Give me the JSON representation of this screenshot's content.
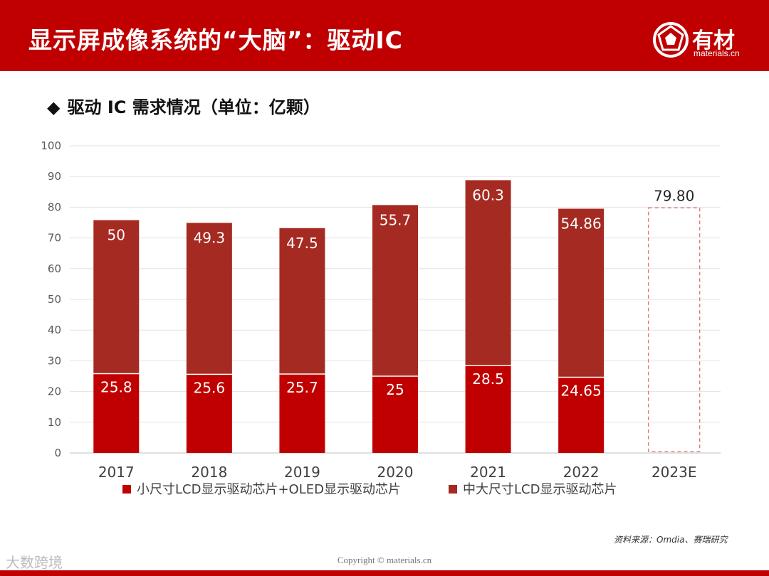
{
  "header": {
    "title": "显示屏成像系统的“大脑”：驱动IC",
    "logo_text": "有材",
    "logo_domain": "materials.cn"
  },
  "subtitle": {
    "marker": "◆",
    "text": "驱动 IC 需求情况（单位：亿颗）"
  },
  "chart_data": {
    "type": "bar",
    "stacked": true,
    "title": "驱动 IC 需求情况（单位：亿颗）",
    "categories": [
      "2017",
      "2018",
      "2019",
      "2020",
      "2021",
      "2022",
      "2023E"
    ],
    "series": [
      {
        "name": "小尺寸LCD显示驱动芯片+OLED显示驱动芯片",
        "color": "#c00000",
        "values": [
          25.8,
          25.6,
          25.7,
          25,
          28.5,
          24.65,
          null
        ],
        "labels": [
          "25.8",
          "25.6",
          "25.7",
          "25",
          "28.5",
          "24.65",
          ""
        ]
      },
      {
        "name": "中大尺寸LCD显示驱动芯片",
        "color": "#a52a22",
        "values": [
          50,
          49.3,
          47.5,
          55.7,
          60.3,
          54.86,
          null
        ],
        "labels": [
          "50",
          "49.3",
          "47.5",
          "55.7",
          "60.3",
          "54.86",
          ""
        ]
      }
    ],
    "forecast": {
      "category": "2023E",
      "total": 79.8,
      "label": "79.80",
      "style": "dashed-outline"
    },
    "yticks": [
      "0",
      "10",
      "20",
      "30",
      "40",
      "50",
      "60",
      "70",
      "80",
      "90",
      "100"
    ],
    "ylim": [
      0,
      100
    ],
    "grid": true,
    "legend_position": "bottom",
    "xlabel": "",
    "ylabel": ""
  },
  "source": "资料来源：Omdia、赛瑞研究",
  "copyright": "Copyright © materials.cn",
  "corner_watermark": "大数跨境",
  "colors": {
    "header": "#c00000",
    "lower": "#c00000",
    "upper": "#a52a22"
  }
}
